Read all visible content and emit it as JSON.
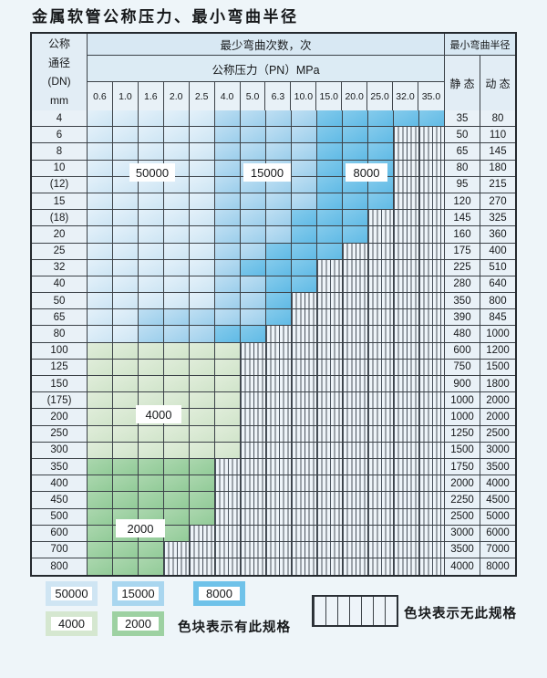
{
  "title": "金属软管公称压力、最小弯曲半径",
  "table": {
    "dn_header_lines": [
      "公称",
      "通径",
      "(DN)",
      "mm"
    ],
    "cycles_header": "最少弯曲次数，次",
    "pressure_header": "公称压力（PN）MPa",
    "pressures": [
      "0.6",
      "1.0",
      "1.6",
      "2.0",
      "2.5",
      "4.0",
      "5.0",
      "6.3",
      "10.0",
      "15.0",
      "20.0",
      "25.0",
      "32.0",
      "35.0"
    ],
    "radius_header": "最小弯曲半径",
    "static_header": "静 态",
    "dynamic_header": "动 态",
    "cell_legend": {
      "L": "50000次-浅蓝",
      "M": "15000次-中蓝",
      "D": "8000次-深蓝",
      "G": "4000次-浅绿",
      "g": "2000次-深绿",
      "X": "无此规格"
    },
    "rows": [
      {
        "dn": "4",
        "cells": "LLLLLMMMMDDDDD",
        "static": "35",
        "dynamic": "80"
      },
      {
        "dn": "6",
        "cells": "LLLLLMMMMDDDXX",
        "static": "50",
        "dynamic": "110"
      },
      {
        "dn": "8",
        "cells": "LLLLLMMMMDDDXX",
        "static": "65",
        "dynamic": "145"
      },
      {
        "dn": "10",
        "cells": "LLLLLMMMMDDDXX",
        "static": "80",
        "dynamic": "180"
      },
      {
        "dn": "(12)",
        "cells": "LLLLLMMMMDDDXX",
        "static": "95",
        "dynamic": "215"
      },
      {
        "dn": "15",
        "cells": "LLLLLMMMMDDDXX",
        "static": "120",
        "dynamic": "270"
      },
      {
        "dn": "(18)",
        "cells": "LLLLLMMMDDDXXX",
        "static": "145",
        "dynamic": "325"
      },
      {
        "dn": "20",
        "cells": "LLLLLMMMDDDXXX",
        "static": "160",
        "dynamic": "360"
      },
      {
        "dn": "25",
        "cells": "LLLLLMMDDDXXXX",
        "static": "175",
        "dynamic": "400"
      },
      {
        "dn": "32",
        "cells": "LLLLLMDDDXXXXX",
        "static": "225",
        "dynamic": "510"
      },
      {
        "dn": "40",
        "cells": "LLLLLMMDDXXXXX",
        "static": "280",
        "dynamic": "640"
      },
      {
        "dn": "50",
        "cells": "LLLLLMMDXXXXXX",
        "static": "350",
        "dynamic": "800"
      },
      {
        "dn": "65",
        "cells": "LLMMMMMDXXXXXX",
        "static": "390",
        "dynamic": "845"
      },
      {
        "dn": "80",
        "cells": "LLMMMDDXXXXXXX",
        "static": "480",
        "dynamic": "1000"
      },
      {
        "dn": "100",
        "cells": "GGGGGGXXXXXXXX",
        "static": "600",
        "dynamic": "1200"
      },
      {
        "dn": "125",
        "cells": "GGGGGGXXXXXXXX",
        "static": "750",
        "dynamic": "1500"
      },
      {
        "dn": "150",
        "cells": "GGGGGGXXXXXXXX",
        "static": "900",
        "dynamic": "1800"
      },
      {
        "dn": "(175)",
        "cells": "GGGGGGXXXXXXXX",
        "static": "1000",
        "dynamic": "2000"
      },
      {
        "dn": "200",
        "cells": "GGGGGGXXXXXXXX",
        "static": "1000",
        "dynamic": "2000"
      },
      {
        "dn": "250",
        "cells": "GGGGGGXXXXXXXX",
        "static": "1250",
        "dynamic": "2500"
      },
      {
        "dn": "300",
        "cells": "GGGGGGXXXXXXXX",
        "static": "1500",
        "dynamic": "3000"
      },
      {
        "dn": "350",
        "cells": "gggggXXXXXXXXX",
        "static": "1750",
        "dynamic": "3500"
      },
      {
        "dn": "400",
        "cells": "gggggXXXXXXXXX",
        "static": "2000",
        "dynamic": "4000"
      },
      {
        "dn": "450",
        "cells": "gggggXXXXXXXXX",
        "static": "2250",
        "dynamic": "4500"
      },
      {
        "dn": "500",
        "cells": "gggggXXXXXXXXX",
        "static": "2500",
        "dynamic": "5000"
      },
      {
        "dn": "600",
        "cells": "ggggXXXXXXXXXX",
        "static": "3000",
        "dynamic": "6000"
      },
      {
        "dn": "700",
        "cells": "gggXXXXXXXXXXX",
        "static": "3500",
        "dynamic": "7000"
      },
      {
        "dn": "800",
        "cells": "gggXXXXXXXXXXX",
        "static": "4000",
        "dynamic": "8000"
      }
    ]
  },
  "overlays": [
    {
      "label": "50000"
    },
    {
      "label": "15000"
    },
    {
      "label": "8000"
    },
    {
      "label": "4000"
    },
    {
      "label": "2000"
    }
  ],
  "legend": {
    "swatches": [
      {
        "label": "50000",
        "tone": "light-blue",
        "color": "#cfe5f3"
      },
      {
        "label": "15000",
        "tone": "medium-blue",
        "color": "#a9d6ef"
      },
      {
        "label": "8000",
        "tone": "dark-blue",
        "color": "#6fc2e9"
      },
      {
        "label": "4000",
        "tone": "light-green",
        "color": "#d5e7d0"
      },
      {
        "label": "2000",
        "tone": "dark-green",
        "color": "#9dd1a2"
      }
    ],
    "has_spec_text": "色块表示有此规格",
    "no_spec_text": "色块表示无此规格"
  },
  "colors": {
    "light_blue": "#d3e7f4",
    "medium_blue": "#a6d4ee",
    "dark_blue": "#6ec1e8",
    "light_green": "#d5e7d1",
    "dark_green": "#9bcfa0",
    "hatch_bg": "#eef4f9",
    "header_bg": "#d8e8f3",
    "label_cell_bg": "#e9f1f7",
    "grid": "#3c4248"
  }
}
